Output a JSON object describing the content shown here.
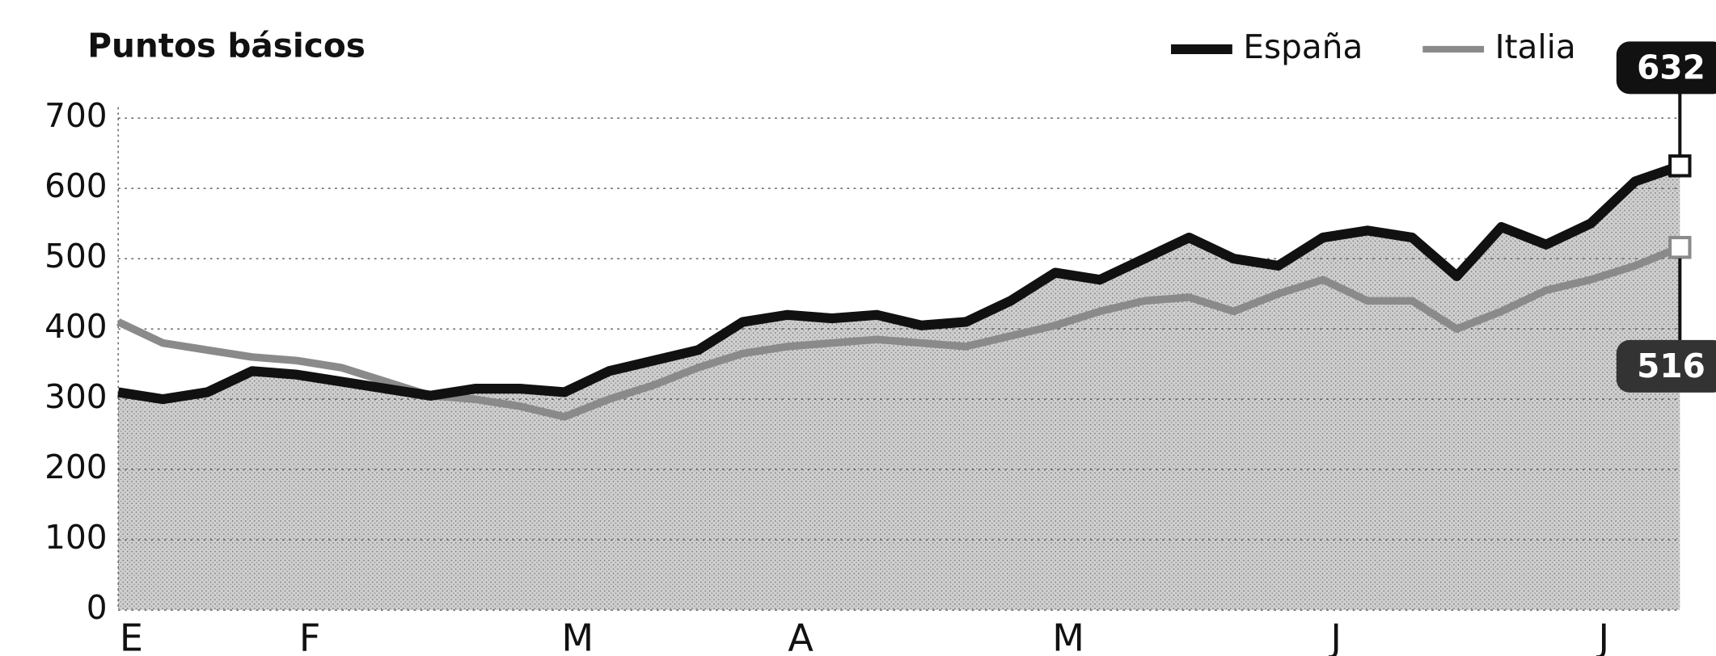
{
  "chart_data": {
    "type": "line",
    "title": "Puntos básicos",
    "categories": [
      "E",
      null,
      null,
      null,
      "F",
      null,
      null,
      null,
      null,
      null,
      "M",
      null,
      null,
      null,
      null,
      "A",
      null,
      null,
      null,
      null,
      null,
      "M",
      null,
      null,
      null,
      null,
      null,
      "J",
      null,
      null,
      null,
      null,
      null,
      "J",
      null,
      null
    ],
    "series": [
      {
        "name": "España",
        "color": "#111111",
        "values": [
          310,
          300,
          310,
          340,
          335,
          325,
          315,
          305,
          315,
          315,
          310,
          340,
          355,
          370,
          410,
          420,
          415,
          420,
          405,
          410,
          440,
          480,
          470,
          500,
          530,
          500,
          490,
          530,
          540,
          530,
          475,
          545,
          520,
          550,
          610,
          632
        ]
      },
      {
        "name": "Italia",
        "color": "#8a8a8a",
        "values": [
          410,
          380,
          370,
          360,
          355,
          345,
          325,
          305,
          300,
          290,
          275,
          300,
          320,
          345,
          365,
          375,
          380,
          385,
          380,
          375,
          390,
          405,
          425,
          440,
          445,
          425,
          450,
          470,
          440,
          440,
          400,
          425,
          455,
          470,
          490,
          516
        ]
      }
    ],
    "ylim": [
      0,
      700
    ],
    "yticks": [
      0,
      100,
      200,
      300,
      400,
      500,
      600,
      700
    ],
    "grid": true,
    "legend": "top-right"
  }
}
